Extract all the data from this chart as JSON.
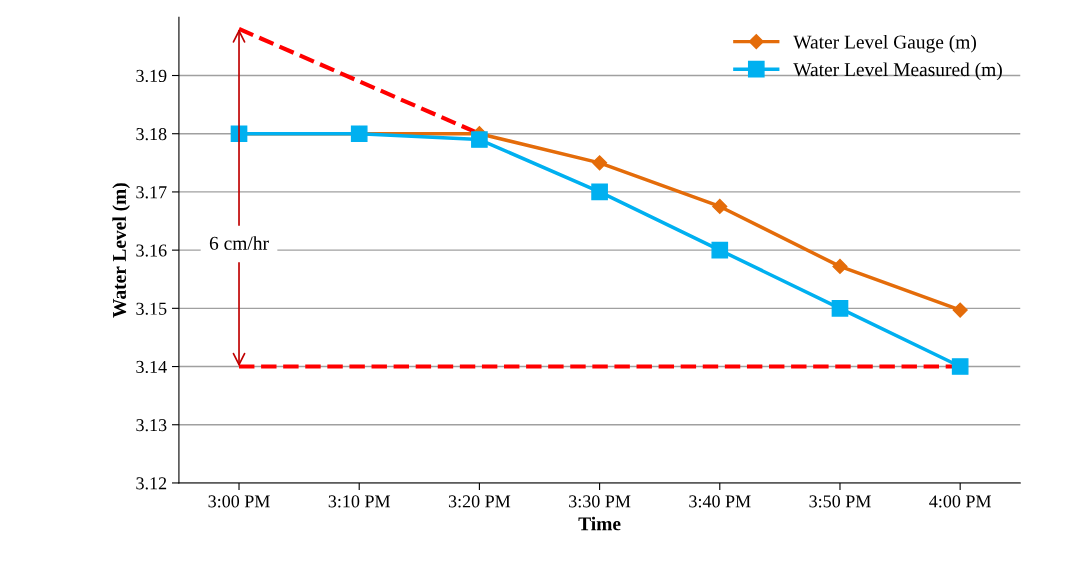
{
  "chart_data": {
    "type": "line",
    "xlabel": "Time",
    "ylabel": "Water Level (m)",
    "categories": [
      "3:00 PM",
      "3:10 PM",
      "3:20 PM",
      "3:30 PM",
      "3:40 PM",
      "3:50 PM",
      "4:00 PM"
    ],
    "series": [
      {
        "name": "Water Level Gauge (m)",
        "color": "#e46c0a",
        "marker": "diamond",
        "values": [
          3.18,
          3.18,
          3.18,
          3.175,
          3.1675,
          3.1572,
          3.1497
        ]
      },
      {
        "name": "Water Level Measured (m)",
        "color": "#00b0f0",
        "marker": "square",
        "values": [
          3.18,
          3.18,
          3.179,
          3.17,
          3.16,
          3.15,
          3.14
        ]
      },
      {
        "color": "#ff0000",
        "marker": "none",
        "line_style": "dashed",
        "values": [
          3.198,
          3.189,
          3.18,
          null,
          null,
          null,
          null
        ]
      },
      {
        "color": "#ff0000",
        "marker": "none",
        "line_style": "dashed",
        "values": [
          3.14,
          3.14,
          3.14,
          3.14,
          3.14,
          3.14,
          3.14
        ]
      }
    ],
    "ylim": [
      3.12,
      3.2
    ],
    "yticks": [
      3.12,
      3.13,
      3.14,
      3.15,
      3.16,
      3.17,
      3.18,
      3.19
    ],
    "grid": "y",
    "legend": "top right",
    "annotations": [
      {
        "text": "6 cm/hr",
        "x": "3:00 PM",
        "y": 3.198
      }
    ]
  }
}
